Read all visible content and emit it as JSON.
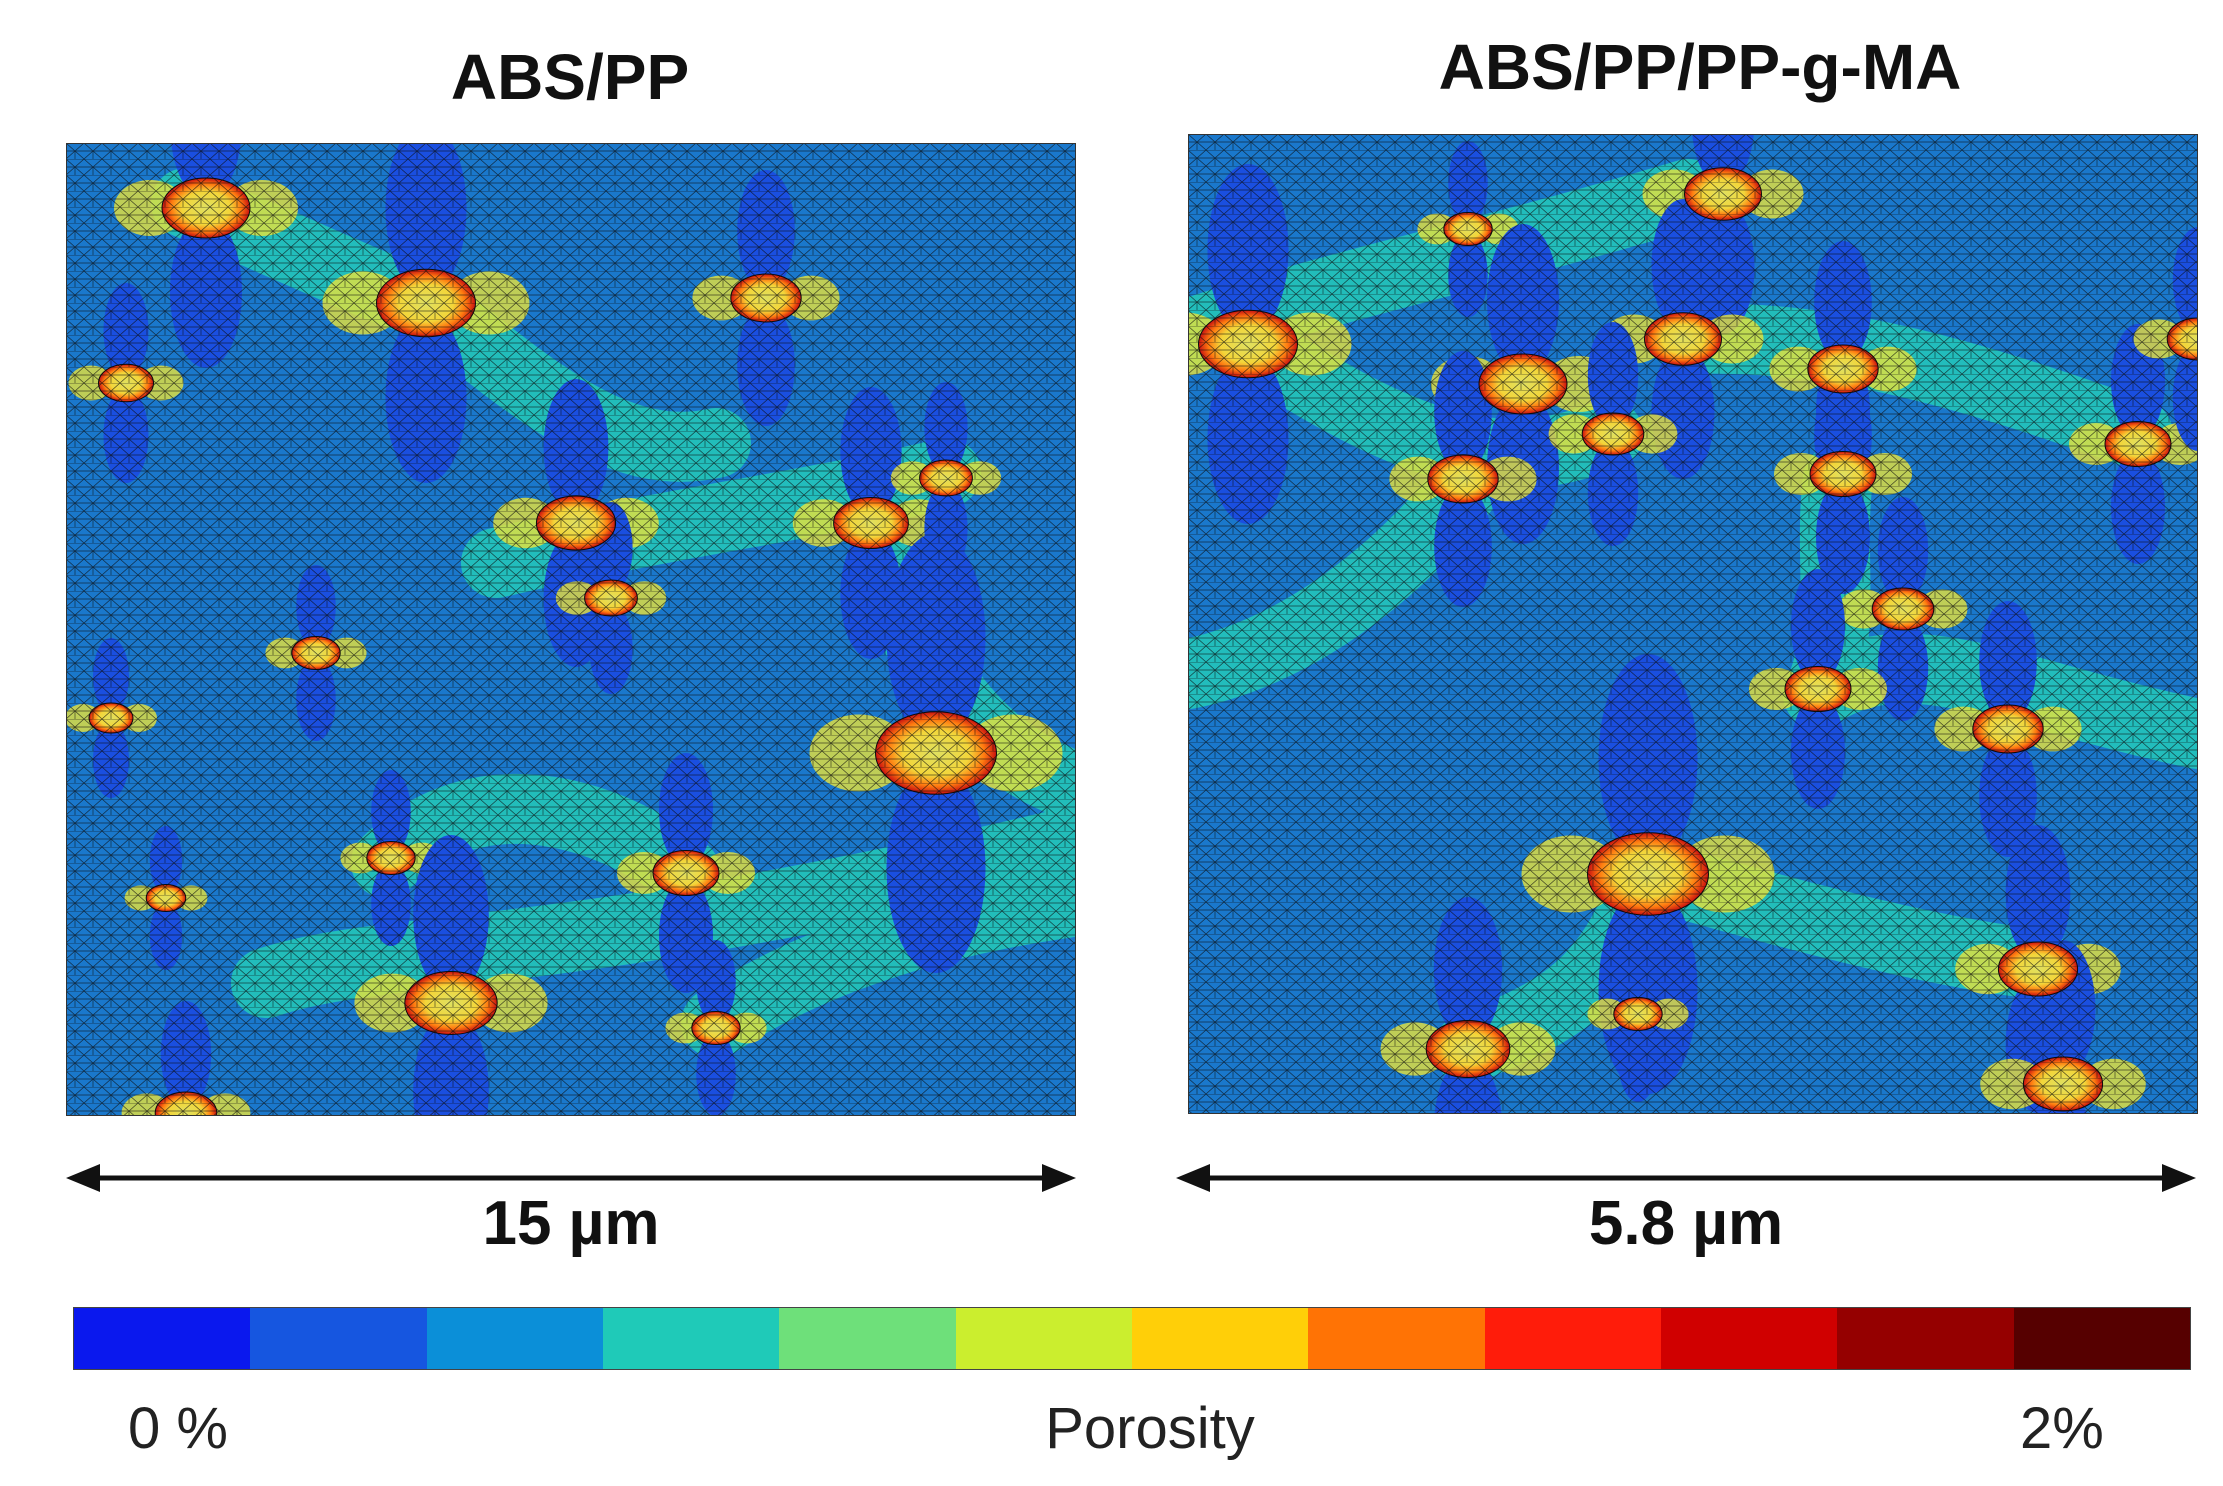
{
  "panels": [
    {
      "title": "ABS/PP",
      "scale_label": "15 µm"
    },
    {
      "title": "ABS/PP/PP-g-MA",
      "scale_label": "5.8 µm"
    }
  ],
  "colorbar": {
    "title": "Porosity",
    "min_label": "0 %",
    "max_label": "2%",
    "colors": [
      "#0a18ee",
      "#1656e0",
      "#0b8fd8",
      "#1fcab8",
      "#6ee07a",
      "#cbee2e",
      "#ffcf08",
      "#ff7305",
      "#ff1c0a",
      "#d00000",
      "#950000",
      "#560000"
    ]
  },
  "palette": {
    "background_blue": "#1a78cc",
    "deep_blue": "#1a4fe0",
    "cyan": "#23c1ba",
    "yellow": "#e8e43a",
    "red": "#c81010",
    "mesh": "#0b0b0b"
  }
}
